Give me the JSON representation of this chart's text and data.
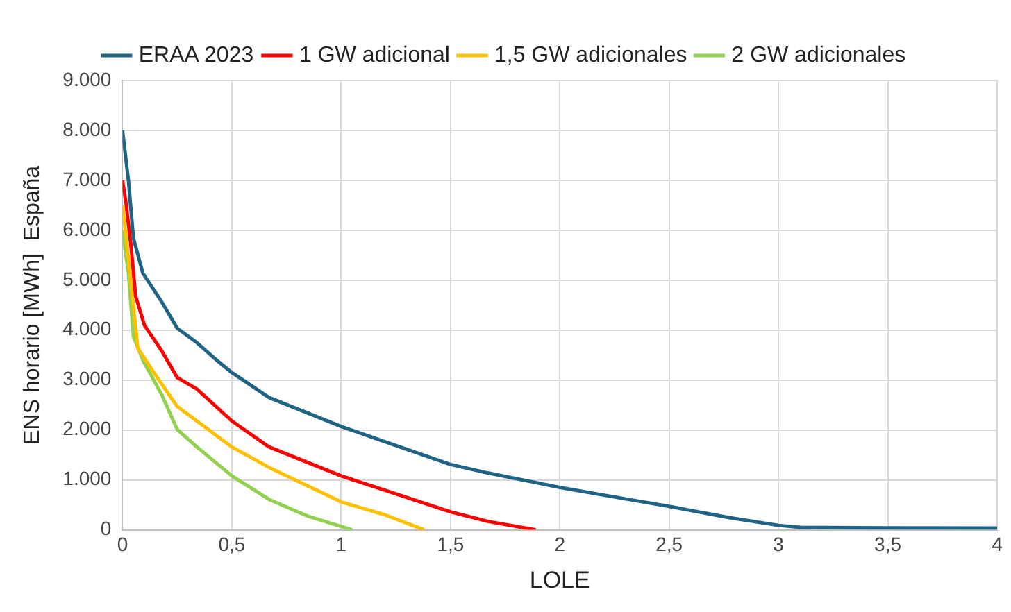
{
  "chart_data": {
    "type": "line",
    "xlabel": "LOLE",
    "ylabel": "ENS horario [MWh]  España",
    "xlim": [
      0,
      4
    ],
    "xticks": [
      0,
      {
        "value": 0.5,
        "label": "0,5"
      },
      1,
      {
        "value": 1.5,
        "label": "1,5"
      },
      2,
      {
        "value": 2.5,
        "label": "2,5"
      },
      3,
      {
        "value": 3.5,
        "label": "3,5"
      },
      4
    ],
    "ylim": [
      0,
      9000
    ],
    "yticks": [
      0,
      {
        "value": 1000,
        "label": "1.000"
      },
      {
        "value": 2000,
        "label": "2.000"
      },
      {
        "value": 3000,
        "label": "3.000"
      },
      {
        "value": 4000,
        "label": "4.000"
      },
      {
        "value": 5000,
        "label": "5.000"
      },
      {
        "value": 6000,
        "label": "6.000"
      },
      {
        "value": 7000,
        "label": "7.000"
      },
      {
        "value": 8000,
        "label": "8.000"
      },
      {
        "value": 9000,
        "label": "9.000"
      }
    ],
    "grid": true,
    "legend": "top",
    "marker": "none",
    "line_style": "solid",
    "series": [
      {
        "name": "ERAA 2023",
        "color": "#1f6484",
        "x": [
          0,
          0.027,
          0.05,
          0.093,
          0.18,
          0.25,
          0.34,
          0.43,
          0.5,
          0.67,
          1.0,
          1.23,
          1.5,
          1.67,
          2.0,
          2.34,
          2.5,
          2.78,
          3.0,
          3.1,
          3.5,
          4.0
        ],
        "values": [
          8000,
          7000,
          5840,
          5140,
          4560,
          4040,
          3750,
          3400,
          3150,
          2650,
          2070,
          1720,
          1310,
          1140,
          850,
          590,
          470,
          240,
          90,
          50,
          40,
          35
        ]
      },
      {
        "name": "1 GW adicional",
        "color": "#ff0000",
        "x": [
          0,
          0.016,
          0.038,
          0.06,
          0.1,
          0.18,
          0.25,
          0.34,
          0.5,
          0.67,
          1.0,
          1.23,
          1.5,
          1.67,
          1.89
        ],
        "values": [
          7000,
          6540,
          5720,
          4680,
          4100,
          3580,
          3050,
          2820,
          2180,
          1660,
          1080,
          750,
          360,
          170,
          0
        ]
      },
      {
        "name": "1,5 GW adicionales",
        "color": "#ffc000",
        "x": [
          0,
          0.02,
          0.045,
          0.07,
          0.14,
          0.25,
          0.34,
          0.5,
          0.67,
          1.0,
          1.2,
          1.38
        ],
        "values": [
          6500,
          5700,
          4680,
          3640,
          3170,
          2470,
          2180,
          1660,
          1250,
          560,
          300,
          0
        ]
      },
      {
        "name": "2 GW adicionales",
        "color": "#92d050",
        "x": [
          0,
          0.027,
          0.05,
          0.093,
          0.18,
          0.25,
          0.34,
          0.5,
          0.67,
          0.85,
          1.05
        ],
        "values": [
          6000,
          5140,
          3870,
          3400,
          2700,
          2010,
          1660,
          1080,
          610,
          270,
          0
        ]
      }
    ]
  }
}
